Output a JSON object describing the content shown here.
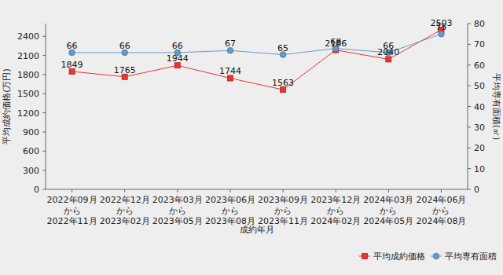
{
  "chart_data": {
    "type": "line",
    "x_label": "成約年月",
    "y_label": "平均成約価格(万円)",
    "y2_label": "平均専有面積(㎡)",
    "categories": [
      "2022年09月\nから\n2022年11月",
      "2022年12月\nから\n2023年02月",
      "2023年03月\nから\n2023年05月",
      "2023年06月\nから\n2023年08月",
      "2023年09月\nから\n2023年11月",
      "2023年12月\nから\n2024年02月",
      "2024年03月\nから\n2024年05月",
      "2024年06月\nから\n2024年08月"
    ],
    "series": [
      {
        "name": "平均成約価格",
        "color": "#ee3333",
        "marker": "square",
        "values": [
          1849,
          1765,
          1944,
          1744,
          1563,
          2186,
          2040,
          2503
        ]
      },
      {
        "name": "平均専有面積",
        "color": "#6699cc",
        "marker": "circle",
        "axis": "y2",
        "values": [
          66,
          66,
          66,
          67,
          65,
          68,
          66,
          75
        ]
      }
    ],
    "ylim": [
      0,
      2600
    ],
    "yticks": [
      0,
      300,
      600,
      900,
      1200,
      1500,
      1800,
      2100,
      2400
    ],
    "y2lim": [
      0,
      80
    ],
    "y2ticks": [
      0,
      10,
      20,
      30,
      40,
      50,
      60,
      70,
      80
    ],
    "grid": false,
    "legend": "lower right",
    "data_labels": true
  }
}
